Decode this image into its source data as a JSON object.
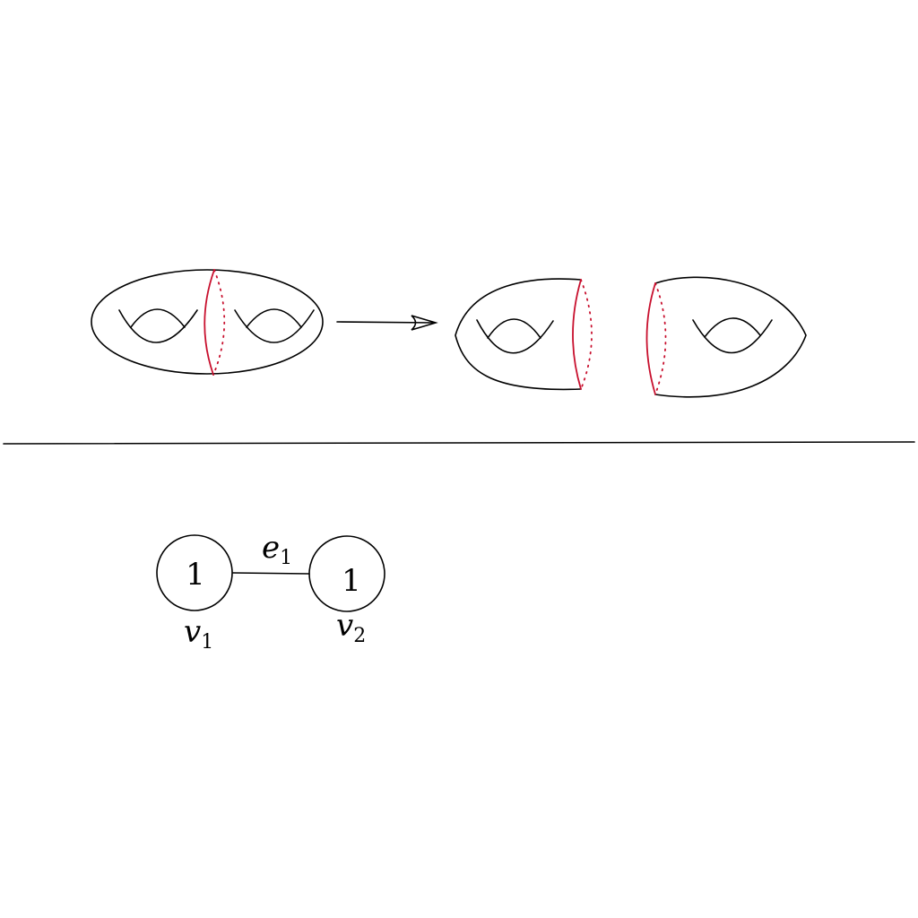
{
  "colors": {
    "curve": "#c8102e",
    "line": "#000000"
  },
  "graph": {
    "vertices": [
      {
        "id": "v1",
        "genus_label": "1",
        "name": "v",
        "subscript": "1"
      },
      {
        "id": "v2",
        "genus_label": "1",
        "name": "v",
        "subscript": "2"
      }
    ],
    "edges": [
      {
        "id": "e1",
        "name": "e",
        "subscript": "1"
      }
    ]
  }
}
